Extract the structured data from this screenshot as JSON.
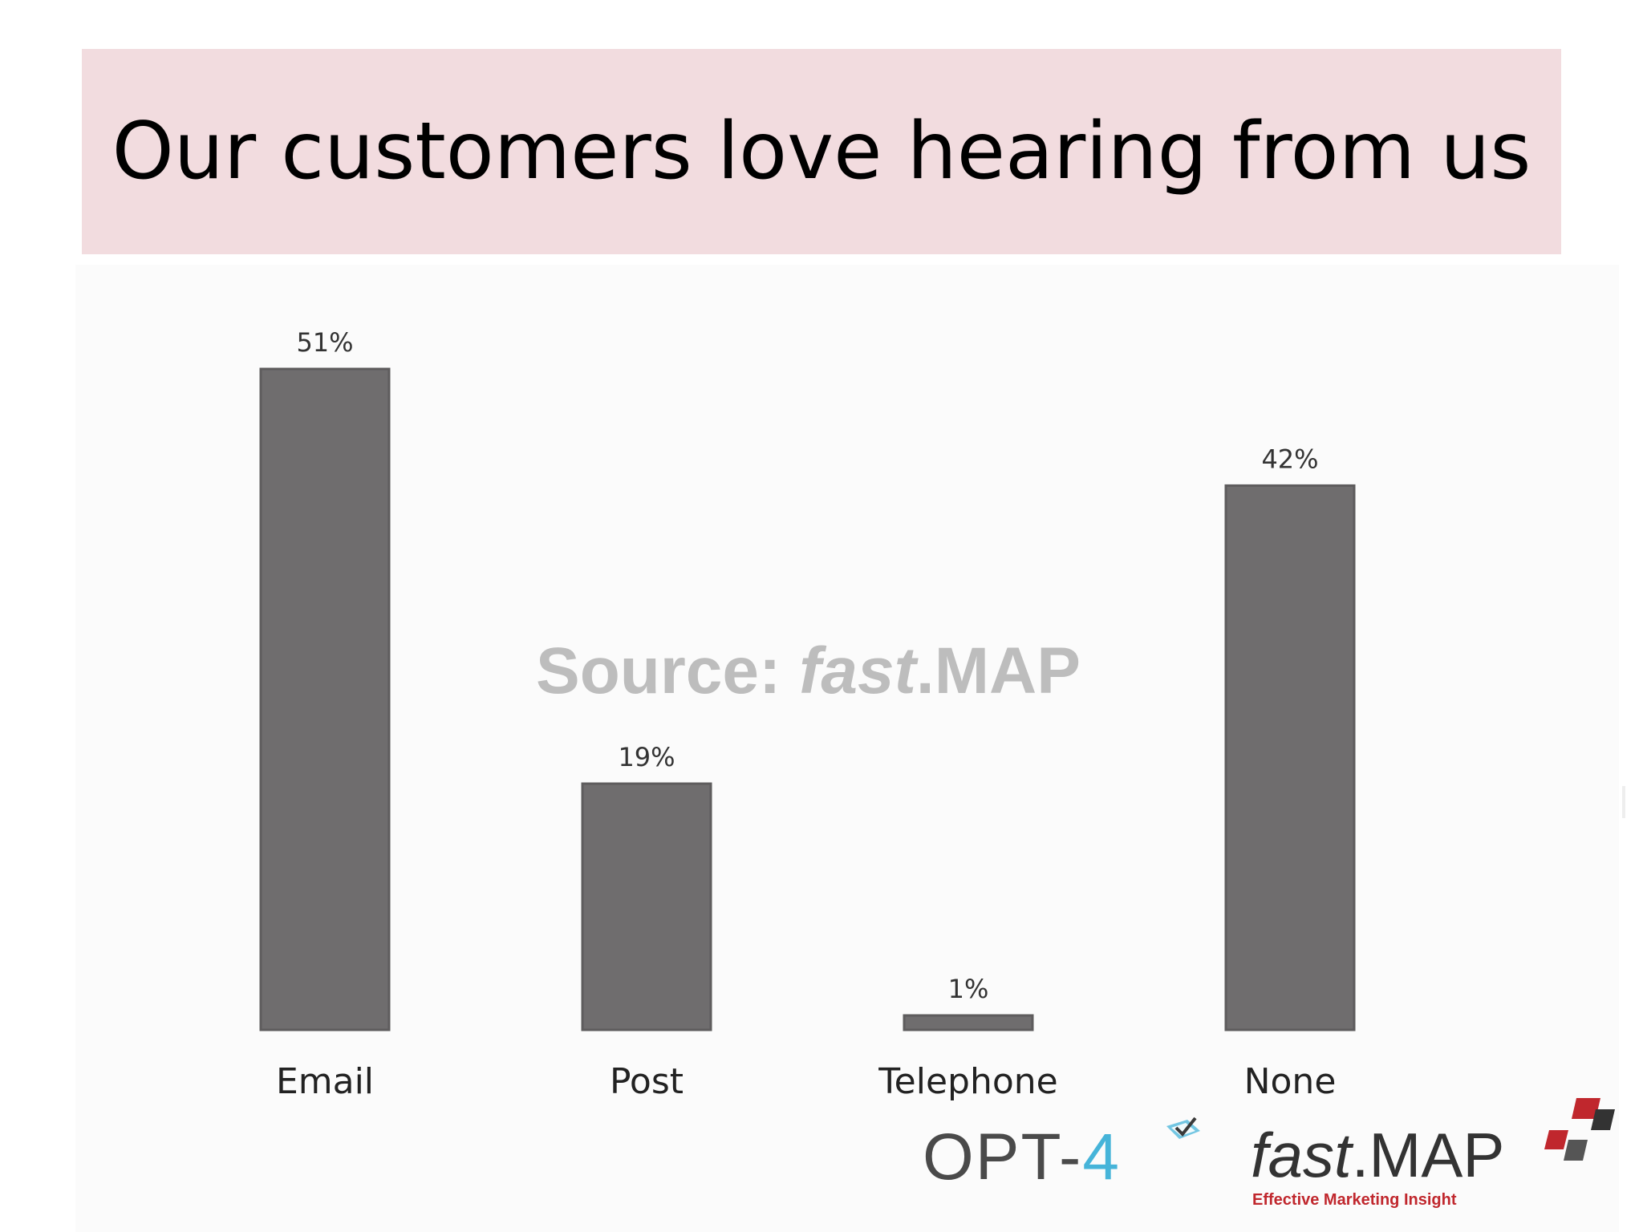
{
  "title": "Our customers love hearing from us",
  "chart_data": {
    "type": "bar",
    "title": "",
    "xlabel": "",
    "ylabel": "",
    "categories": [
      "Email",
      "Post",
      "Telephone",
      "None"
    ],
    "values": [
      51,
      19,
      1,
      42
    ],
    "value_labels": [
      "51%",
      "19%",
      "1%",
      "42%"
    ],
    "ylim": [
      0,
      51
    ],
    "grid": false,
    "legend": "none",
    "bar_color": "#6f6d6e"
  },
  "watermark": {
    "prefix": "Source: ",
    "italic": "fast",
    "suffix": ".MAP"
  },
  "logos": {
    "opt4": {
      "text_main": "OPT-",
      "text_accent": "4"
    },
    "fastmap": {
      "italic": "fast",
      "suffix": ".MAP",
      "tagline": "Effective Marketing Insight"
    }
  },
  "colors": {
    "title_band": "#f2dcdf",
    "bar": "#6f6d6e",
    "watermark": "#bdbdbd",
    "opt4_accent": "#46b4d9",
    "fastmap_red": "#c0272d"
  }
}
